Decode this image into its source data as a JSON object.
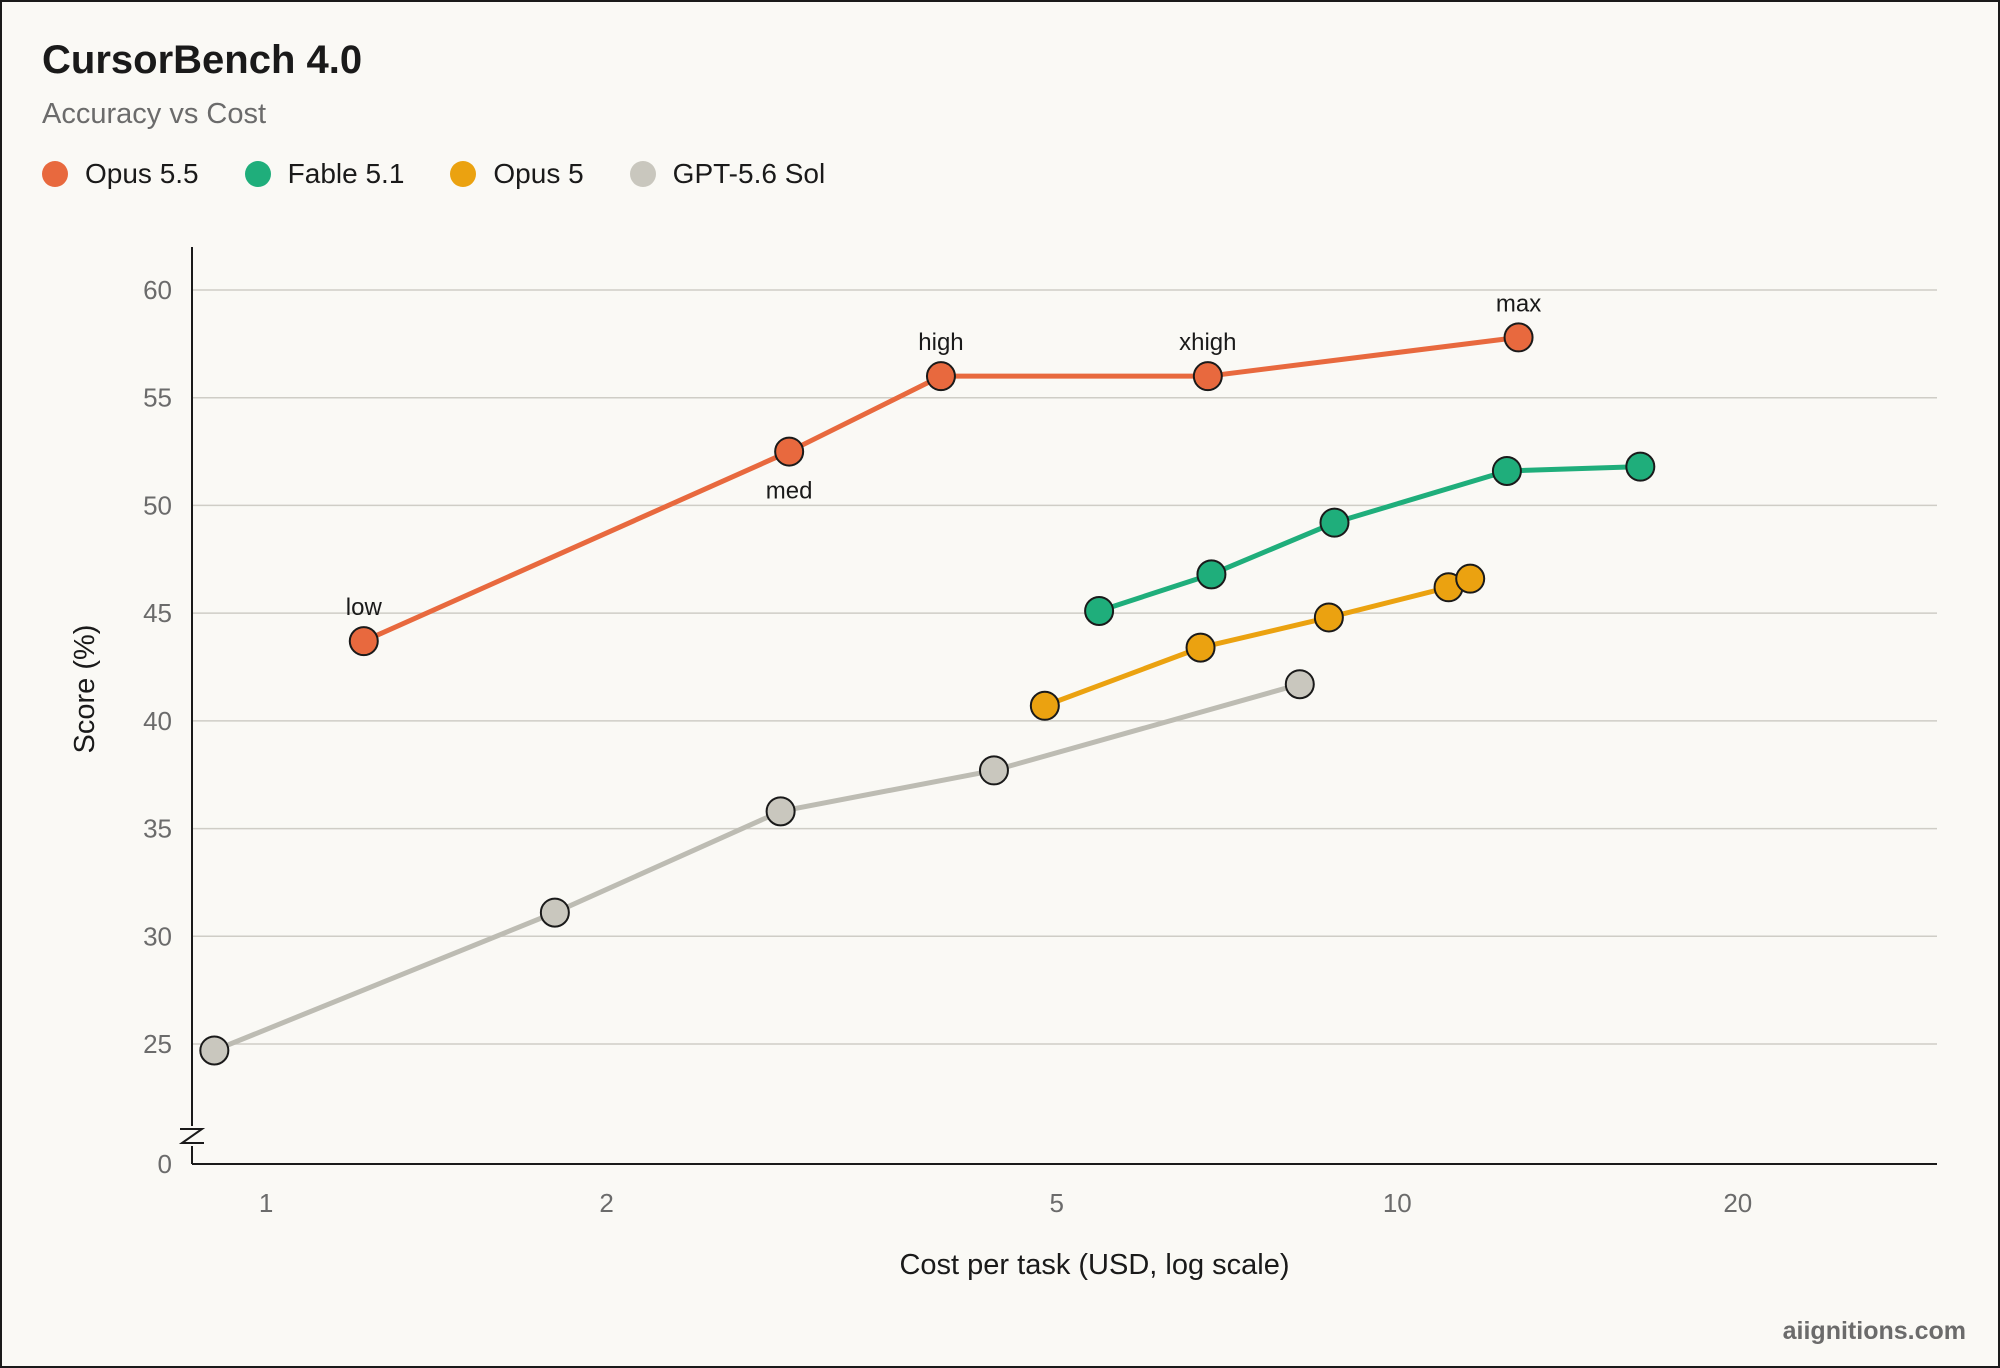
{
  "header": {
    "title": "CursorBench 4.0",
    "subtitle": "Accuracy vs Cost"
  },
  "watermark": "aiignitions.com",
  "chart_data": {
    "type": "line",
    "title": "CursorBench 4.0",
    "subtitle": "Accuracy vs Cost",
    "xlabel": "Cost per task (USD, log scale)",
    "ylabel": "Score (%)",
    "xscale": "log",
    "xlim": [
      0.86,
      30
    ],
    "ylim": [
      0,
      62
    ],
    "x_ticks": [
      1,
      2,
      5,
      10,
      20
    ],
    "x_tick_labels": [
      "1",
      "2",
      "5",
      "10",
      "20"
    ],
    "y_ticks": [
      0,
      25,
      30,
      35,
      40,
      45,
      50,
      55,
      60
    ],
    "y_tick_labels": [
      "0",
      "25",
      "30",
      "35",
      "40",
      "45",
      "50",
      "55",
      "60"
    ],
    "y_axis_break": true,
    "grid": "horizontal",
    "legend_position": "top-left",
    "series": [
      {
        "name": "Opus 5.5",
        "color": "#e8693e",
        "points": [
          {
            "x": 1.22,
            "y": 43.7,
            "label": "low",
            "label_pos": "above"
          },
          {
            "x": 2.9,
            "y": 52.5,
            "label": "med",
            "label_pos": "below"
          },
          {
            "x": 3.95,
            "y": 56.0,
            "label": "high",
            "label_pos": "above"
          },
          {
            "x": 6.8,
            "y": 56.0,
            "label": "xhigh",
            "label_pos": "above"
          },
          {
            "x": 12.8,
            "y": 57.8,
            "label": "max",
            "label_pos": "above"
          }
        ]
      },
      {
        "name": "Fable 5.1",
        "color": "#1fae7b",
        "points": [
          {
            "x": 5.45,
            "y": 45.1
          },
          {
            "x": 6.85,
            "y": 46.8
          },
          {
            "x": 8.8,
            "y": 49.2
          },
          {
            "x": 12.5,
            "y": 51.6
          },
          {
            "x": 16.4,
            "y": 51.8
          }
        ]
      },
      {
        "name": "Opus 5",
        "color": "#eba210",
        "points": [
          {
            "x": 4.88,
            "y": 40.7
          },
          {
            "x": 6.7,
            "y": 43.4
          },
          {
            "x": 8.7,
            "y": 44.8
          },
          {
            "x": 11.1,
            "y": 46.2
          },
          {
            "x": 11.6,
            "y": 46.6
          }
        ]
      },
      {
        "name": "GPT-5.6 Sol",
        "color": "#c9c7be",
        "line_color": "#bdbcb3",
        "points": [
          {
            "x": 0.9,
            "y": 24.7
          },
          {
            "x": 1.8,
            "y": 31.1
          },
          {
            "x": 2.85,
            "y": 35.8
          },
          {
            "x": 4.4,
            "y": 37.7
          },
          {
            "x": 8.2,
            "y": 41.7
          }
        ]
      }
    ]
  }
}
